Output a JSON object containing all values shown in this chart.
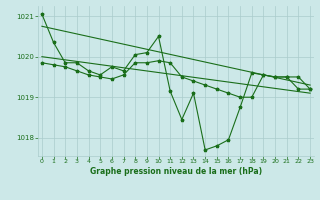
{
  "hours": [
    0,
    1,
    2,
    3,
    4,
    5,
    6,
    7,
    8,
    9,
    10,
    11,
    12,
    13,
    14,
    15,
    16,
    17,
    18,
    19,
    20,
    21,
    22,
    23
  ],
  "pressure_main": [
    1021.05,
    1020.35,
    1019.85,
    1019.85,
    1019.65,
    1019.55,
    1019.75,
    1019.65,
    1020.05,
    1020.1,
    1020.5,
    1019.15,
    1018.45,
    1019.1,
    1017.7,
    1017.8,
    1017.95,
    1018.75,
    1019.6,
    1019.55,
    1019.5,
    1019.5,
    1019.2,
    1019.2
  ],
  "pressure_line2": [
    1019.85,
    1019.8,
    1019.75,
    1019.65,
    1019.55,
    1019.5,
    1019.45,
    1019.55,
    1019.85,
    1019.85,
    1019.9,
    1019.85,
    1019.5,
    1019.4,
    1019.3,
    1019.2,
    1019.1,
    1019.0,
    1019.0,
    1019.55,
    1019.5,
    1019.5,
    1019.5,
    1019.2
  ],
  "trend_line1_x": [
    0,
    23
  ],
  "trend_line1_y": [
    1020.75,
    1019.3
  ],
  "trend_line2_x": [
    0,
    23
  ],
  "trend_line2_y": [
    1020.0,
    1019.1
  ],
  "background_color": "#cce8e8",
  "grid_color": "#aacccc",
  "line_color": "#1a6e1a",
  "text_color": "#1a6e1a",
  "xlabel": "Graphe pression niveau de la mer (hPa)",
  "ylim": [
    1017.55,
    1021.25
  ],
  "yticks": [
    1018,
    1019,
    1020,
    1021
  ],
  "xticks": [
    0,
    1,
    2,
    3,
    4,
    5,
    6,
    7,
    8,
    9,
    10,
    11,
    12,
    13,
    14,
    15,
    16,
    17,
    18,
    19,
    20,
    21,
    22,
    23
  ]
}
